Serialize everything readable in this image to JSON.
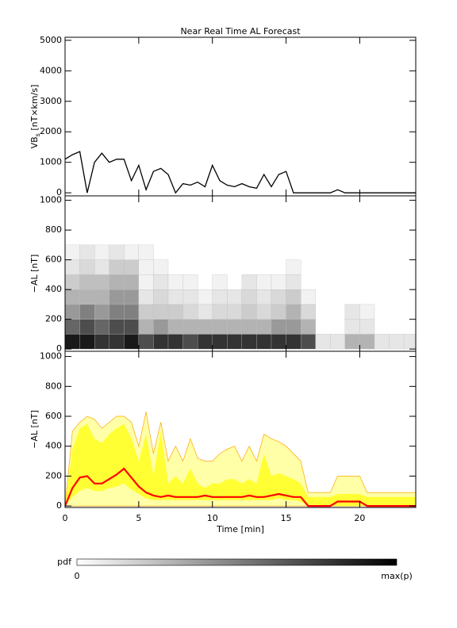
{
  "chart_data": [
    {
      "type": "line",
      "title": "Near Real Time AL Forecast",
      "ylabel": {
        "main": "VB",
        "sub": "s",
        "unit": " [nT×km/s]"
      },
      "xlim": [
        0,
        23.8
      ],
      "xticks": [
        0,
        5,
        10,
        15,
        20
      ],
      "ylim": [
        -100,
        5100
      ],
      "yticks": [
        0,
        1000,
        2000,
        3000,
        4000,
        5000
      ],
      "color": "#000000",
      "x": [
        0,
        0.5,
        1,
        1.5,
        2,
        2.5,
        3,
        3.5,
        4,
        4.5,
        5,
        5.5,
        6,
        6.5,
        7,
        7.5,
        8,
        8.5,
        9,
        9.5,
        10,
        10.5,
        11,
        11.5,
        12,
        12.5,
        13,
        13.5,
        14,
        14.5,
        15,
        15.5,
        16,
        16.5,
        17,
        17.5,
        18,
        18.5,
        19,
        19.5,
        20,
        20.5,
        21,
        21.5,
        22,
        22.5,
        23,
        23.5,
        24
      ],
      "values": [
        1100,
        1250,
        1350,
        0,
        1000,
        1300,
        1000,
        1100,
        1100,
        400,
        900,
        100,
        700,
        800,
        600,
        0,
        300,
        250,
        350,
        200,
        900,
        400,
        250,
        200,
        300,
        200,
        150,
        600,
        200,
        600,
        700,
        0,
        0,
        0,
        0,
        0,
        0,
        100,
        0,
        0,
        0,
        0,
        0,
        0,
        0,
        0,
        0,
        0,
        0
      ]
    },
    {
      "type": "heatmap",
      "ylabel": "−AL [nT]",
      "xlim": [
        0,
        23.8
      ],
      "xticks": [
        0,
        5,
        10,
        15,
        20
      ],
      "ylim": [
        -15,
        1030
      ],
      "yticks": [
        0,
        200,
        400,
        600,
        800,
        1000
      ],
      "x_edges": [
        0,
        1,
        2,
        3,
        4,
        5,
        6,
        7,
        8,
        9,
        10,
        11,
        12,
        13,
        14,
        15,
        16,
        17,
        18,
        19,
        20,
        21,
        22,
        23,
        24
      ],
      "y_edges": [
        0,
        100,
        200,
        300,
        400,
        500,
        600,
        700
      ],
      "z": [
        [
          0.9,
          0.9,
          0.8,
          0.8,
          0.9,
          0.7,
          0.8,
          0.8,
          0.7,
          0.8,
          0.8,
          0.8,
          0.8,
          0.8,
          0.8,
          0.8,
          0.7,
          0.1,
          0.1,
          0.3,
          0.3,
          0.1,
          0.1,
          0.1
        ],
        [
          0.6,
          0.7,
          0.6,
          0.7,
          0.7,
          0.3,
          0.4,
          0.3,
          0.3,
          0.3,
          0.3,
          0.3,
          0.3,
          0.3,
          0.4,
          0.4,
          0.3,
          0,
          0,
          0.1,
          0.1,
          0,
          0,
          0
        ],
        [
          0.4,
          0.5,
          0.4,
          0.5,
          0.5,
          0.2,
          0.2,
          0.2,
          0.15,
          0.1,
          0.15,
          0.15,
          0.2,
          0.15,
          0.2,
          0.3,
          0.15,
          0,
          0,
          0.1,
          0.05,
          0,
          0,
          0
        ],
        [
          0.3,
          0.3,
          0.3,
          0.4,
          0.4,
          0.1,
          0.15,
          0.1,
          0.1,
          0.05,
          0.1,
          0.1,
          0.15,
          0.1,
          0.15,
          0.2,
          0.05,
          0,
          0,
          0,
          0,
          0,
          0,
          0
        ],
        [
          0.2,
          0.25,
          0.25,
          0.3,
          0.3,
          0.05,
          0.1,
          0.05,
          0.05,
          0,
          0.05,
          0,
          0.1,
          0.05,
          0.05,
          0.1,
          0,
          0,
          0,
          0,
          0,
          0,
          0,
          0
        ],
        [
          0.1,
          0.15,
          0.1,
          0.2,
          0.2,
          0.05,
          0.05,
          0,
          0,
          0,
          0,
          0,
          0,
          0,
          0,
          0.05,
          0,
          0,
          0,
          0,
          0,
          0,
          0,
          0
        ],
        [
          0.05,
          0.1,
          0.05,
          0.1,
          0.05,
          0.05,
          0,
          0,
          0,
          0,
          0,
          0,
          0,
          0,
          0,
          0,
          0,
          0,
          0,
          0,
          0,
          0,
          0,
          0
        ]
      ],
      "colorbar": {
        "label": "pdf",
        "min_label": "0",
        "max_label": "max(p)"
      }
    },
    {
      "type": "area",
      "ylabel": "−AL [nT]",
      "xlabel": "Time [min]",
      "xlim": [
        0,
        23.8
      ],
      "xticks": [
        0,
        5,
        10,
        15,
        20
      ],
      "ylim": [
        -10,
        1035
      ],
      "yticks": [
        0,
        200,
        400,
        600,
        800,
        1000
      ],
      "x": [
        0,
        0.5,
        1,
        1.5,
        2,
        2.5,
        3,
        3.5,
        4,
        4.5,
        5,
        5.5,
        6,
        6.5,
        7,
        7.5,
        8,
        8.5,
        9,
        9.5,
        10,
        10.5,
        11,
        11.5,
        12,
        12.5,
        13,
        13.5,
        14,
        14.5,
        15,
        15.5,
        16,
        16.5,
        17,
        17.5,
        18,
        18.5,
        19,
        19.5,
        20,
        20.5,
        21,
        21.5,
        22,
        22.5,
        23,
        23.5,
        24
      ],
      "series": [
        {
          "color": "#ffffa8",
          "edge": "#ffa500",
          "values": [
            0,
            500,
            560,
            600,
            580,
            520,
            560,
            600,
            600,
            560,
            400,
            630,
            350,
            560,
            300,
            400,
            300,
            450,
            320,
            300,
            300,
            350,
            380,
            400,
            300,
            400,
            300,
            480,
            450,
            430,
            400,
            350,
            300,
            90,
            90,
            90,
            90,
            200,
            200,
            200,
            200,
            90,
            90,
            90,
            90,
            90,
            90,
            90,
            90
          ]
        },
        {
          "color": "#ffff33",
          "values": [
            0,
            380,
            520,
            550,
            450,
            420,
            480,
            520,
            550,
            450,
            300,
            480,
            200,
            500,
            150,
            200,
            150,
            250,
            150,
            120,
            150,
            150,
            180,
            180,
            150,
            180,
            150,
            350,
            200,
            220,
            200,
            180,
            150,
            60,
            60,
            60,
            60,
            80,
            80,
            80,
            80,
            60,
            60,
            60,
            60,
            60,
            60,
            60,
            60
          ],
          "lower": [
            0,
            60,
            100,
            120,
            100,
            100,
            120,
            130,
            150,
            110,
            80,
            50,
            40,
            40,
            40,
            40,
            40,
            40,
            40,
            40,
            40,
            40,
            40,
            40,
            40,
            40,
            40,
            40,
            40,
            50,
            40,
            40,
            30,
            0,
            0,
            0,
            0,
            0,
            0,
            0,
            0,
            0,
            0,
            0,
            0,
            0,
            0,
            0,
            0
          ]
        },
        {
          "color": "#ff0000",
          "values": [
            0,
            120,
            190,
            200,
            150,
            150,
            180,
            210,
            250,
            190,
            130,
            90,
            70,
            60,
            70,
            60,
            60,
            60,
            60,
            70,
            60,
            60,
            60,
            60,
            60,
            70,
            60,
            60,
            70,
            80,
            70,
            60,
            60,
            0,
            0,
            0,
            0,
            30,
            30,
            30,
            30,
            0,
            0,
            0,
            0,
            0,
            0,
            0,
            0
          ]
        }
      ]
    }
  ]
}
